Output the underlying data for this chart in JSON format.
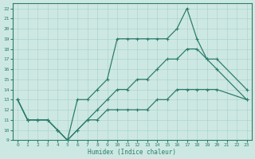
{
  "xlabel": "Humidex (Indice chaleur)",
  "background_color": "#cde8e2",
  "line_color": "#2e7d6e",
  "xlim": [
    -0.5,
    23.5
  ],
  "ylim": [
    9,
    22.5
  ],
  "xticks": [
    0,
    1,
    2,
    3,
    4,
    5,
    6,
    7,
    8,
    9,
    10,
    11,
    12,
    13,
    14,
    15,
    16,
    17,
    18,
    19,
    20,
    21,
    22,
    23
  ],
  "yticks": [
    9,
    10,
    11,
    12,
    13,
    14,
    15,
    16,
    17,
    18,
    19,
    20,
    21,
    22
  ],
  "line1_x": [
    0,
    1,
    2,
    3,
    4,
    5,
    6,
    7,
    8,
    9,
    10,
    11,
    12,
    13,
    14,
    15,
    16,
    17,
    18,
    19,
    20,
    23
  ],
  "line1_y": [
    13,
    11,
    11,
    11,
    10,
    9,
    13,
    13,
    14,
    15,
    19,
    19,
    19,
    19,
    19,
    19,
    20,
    22,
    19,
    17,
    16,
    13
  ],
  "line2_x": [
    0,
    1,
    2,
    3,
    4,
    5,
    6,
    7,
    8,
    9,
    10,
    11,
    12,
    13,
    14,
    15,
    16,
    17,
    18,
    19,
    20,
    23
  ],
  "line2_y": [
    13,
    11,
    11,
    11,
    10,
    9,
    10,
    11,
    12,
    13,
    14,
    14,
    15,
    15,
    16,
    17,
    17,
    18,
    18,
    17,
    17,
    14
  ],
  "line3_x": [
    0,
    1,
    2,
    3,
    4,
    5,
    6,
    7,
    8,
    9,
    10,
    11,
    12,
    13,
    14,
    15,
    16,
    17,
    18,
    19,
    20,
    23
  ],
  "line3_y": [
    13,
    11,
    11,
    11,
    10,
    9,
    10,
    11,
    11,
    12,
    12,
    12,
    12,
    12,
    13,
    13,
    14,
    14,
    14,
    14,
    14,
    13
  ]
}
